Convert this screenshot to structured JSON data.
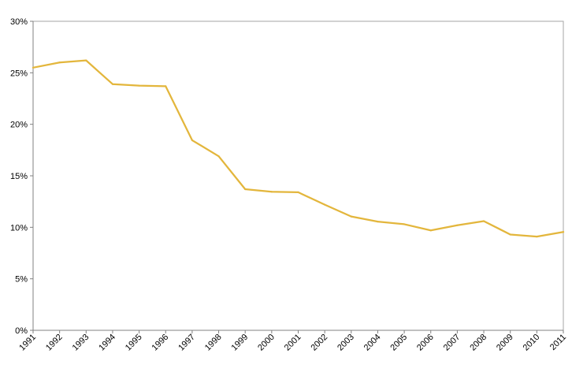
{
  "chart_data": {
    "type": "line",
    "title": "",
    "xlabel": "",
    "ylabel": "",
    "x": [
      "1991",
      "1992",
      "1993",
      "1994",
      "1995",
      "1996",
      "1997",
      "1998",
      "1999",
      "2000",
      "2001",
      "2002",
      "2003",
      "2004",
      "2005",
      "2006",
      "2007",
      "2008",
      "2009",
      "2010",
      "2011"
    ],
    "series": [
      {
        "name": "",
        "color": "#E3B63C",
        "values": [
          25.5,
          26.0,
          26.2,
          23.9,
          23.75,
          23.7,
          18.45,
          16.9,
          13.7,
          13.45,
          13.4,
          12.2,
          11.05,
          10.55,
          10.3,
          9.7,
          10.2,
          10.6,
          9.3,
          9.1,
          9.55
        ]
      }
    ],
    "ylim": [
      0,
      30
    ],
    "yticks": [
      0,
      5,
      10,
      15,
      20,
      25,
      30
    ],
    "ytick_labels": [
      "0%",
      "5%",
      "10%",
      "15%",
      "20%",
      "25%",
      "30%"
    ],
    "grid": false,
    "legend": "none"
  }
}
